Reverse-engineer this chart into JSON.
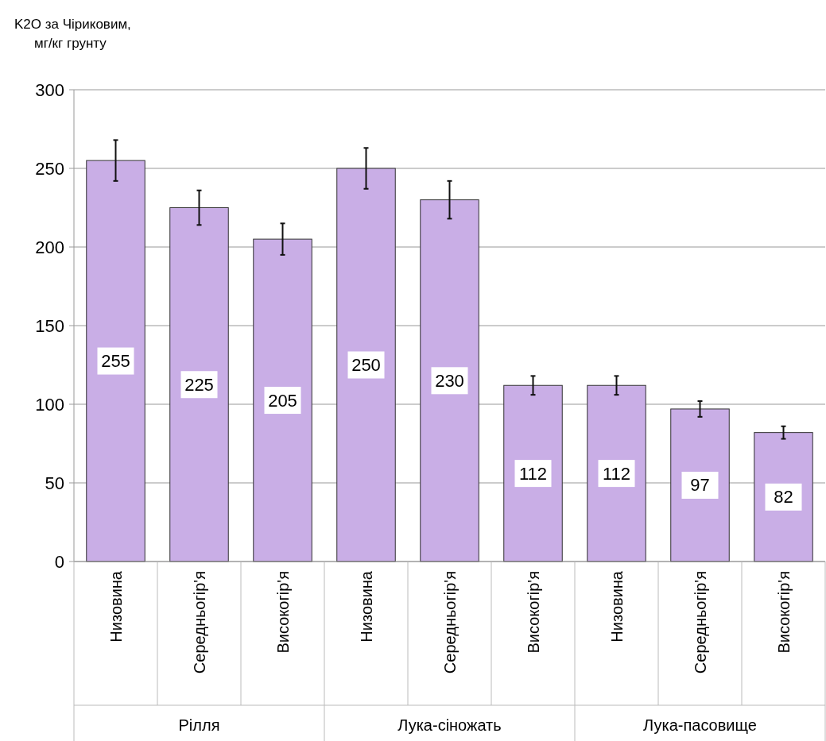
{
  "chart_data": {
    "type": "bar",
    "ylabel": "K2O за Чіриковим, мг/кг грунту",
    "categories": [
      "Низовина",
      "Середньогір'я",
      "Високогір'я",
      "Низовина",
      "Середньогір'я",
      "Високогір'я",
      "Низовина",
      "Середньогір'я",
      "Високогір'я"
    ],
    "values": [
      255,
      225,
      205,
      250,
      230,
      112,
      112,
      97,
      82
    ],
    "errors": [
      13,
      11,
      10,
      13,
      12,
      6,
      6,
      5,
      4
    ],
    "color": "#c9aee6",
    "ylim": [
      0,
      300
    ],
    "yticks": [
      0,
      50,
      100,
      150,
      200,
      250,
      300
    ],
    "grid": "y",
    "data_labels": true,
    "annotations": [
      "Рілля",
      "Лука-сіножать",
      "Лука-пасовище"
    ]
  }
}
